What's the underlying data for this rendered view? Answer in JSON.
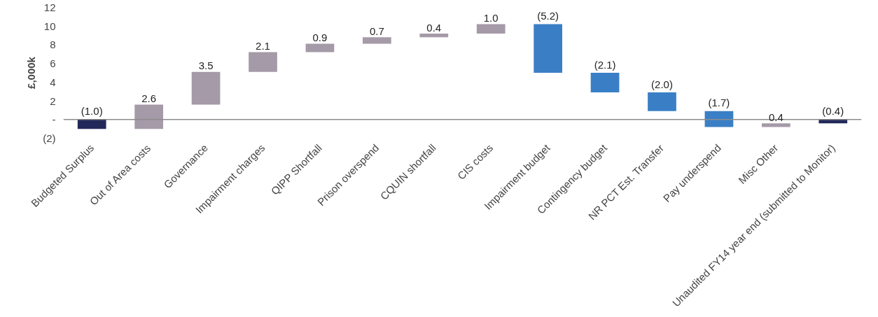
{
  "chart_data": {
    "type": "bar",
    "ylabel": "£,000k",
    "categories": [
      "Budgeted Surplus",
      "Out of Area costs",
      "Governance",
      "Impairment charges",
      "QIPP Shortfall",
      "Prison overspend",
      "CQUIN shortfall",
      "CIS costs",
      "Impairment budget",
      "Contingency budget",
      "NR PCT Est. Transfer",
      "Pay underspend",
      "Misc Other",
      "Unaudited FY14 year end (submitted to Monitor)"
    ],
    "values": [
      -1.0,
      2.6,
      3.5,
      2.1,
      0.9,
      0.7,
      0.4,
      1.0,
      -5.2,
      -2.1,
      -2.0,
      -1.7,
      0.4,
      -0.4
    ],
    "base": [
      0,
      -1.0,
      1.6,
      5.1,
      7.2,
      8.1,
      8.8,
      9.2,
      10.2,
      5.0,
      2.9,
      0.9,
      -0.8,
      0
    ],
    "colors": [
      "#23285a",
      "#a59aa8",
      "#a59aa8",
      "#a59aa8",
      "#a59aa8",
      "#a59aa8",
      "#a59aa8",
      "#a59aa8",
      "#3a7fc6",
      "#3a7fc6",
      "#3a7fc6",
      "#3a7fc6",
      "#a59aa8",
      "#23285a"
    ],
    "value_labels": [
      "(1.0)",
      "2.6",
      "3.5",
      "2.1",
      "0.9",
      "0.7",
      "0.4",
      "1.0",
      "(5.2)",
      "(2.1)",
      "(2.0)",
      "(1.7)",
      "0.4",
      "(0.4)"
    ],
    "ylim": [
      -2,
      12
    ],
    "yticks": [
      {
        "value": -2,
        "label": "(2)"
      },
      {
        "value": 0,
        "label": "-"
      },
      2,
      4,
      6,
      8,
      10,
      12
    ],
    "grid": false
  }
}
